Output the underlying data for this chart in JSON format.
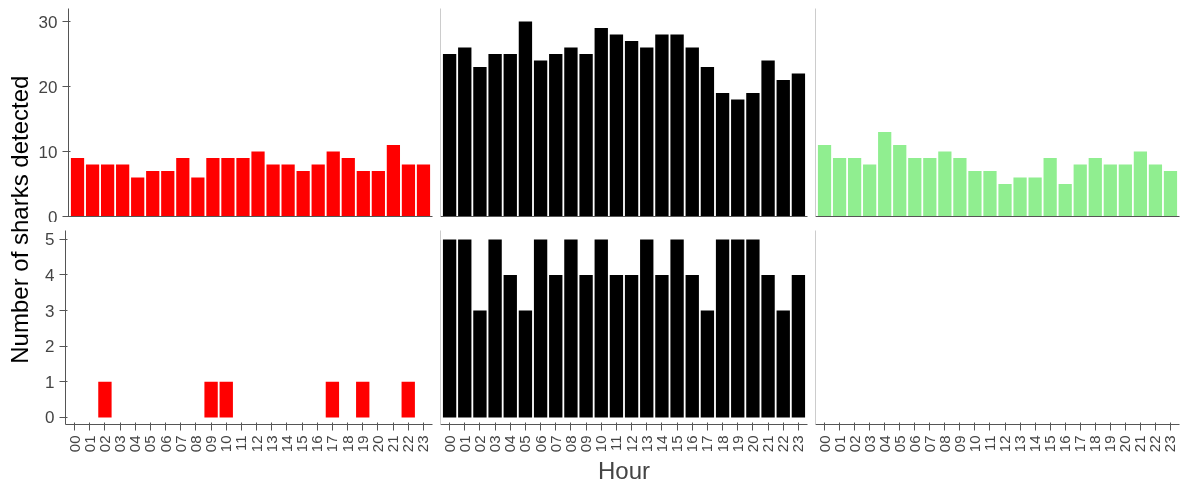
{
  "chart_data": [
    {
      "type": "bar",
      "ylabel": "Number of sharks detected",
      "categories": [
        "00",
        "01",
        "02",
        "03",
        "04",
        "05",
        "06",
        "07",
        "08",
        "09",
        "10",
        "11",
        "12",
        "13",
        "14",
        "15",
        "16",
        "17",
        "18",
        "19",
        "20",
        "21",
        "22",
        "23"
      ],
      "values": [
        9,
        8,
        8,
        8,
        6,
        7,
        7,
        9,
        6,
        9,
        9,
        9,
        10,
        8,
        8,
        7,
        8,
        10,
        9,
        7,
        7,
        11,
        8,
        8
      ],
      "color": "#ff0000",
      "ylim": [
        0,
        32
      ],
      "yticks": [
        0,
        10,
        20,
        30
      ],
      "tick_labels": "y",
      "grid": false
    },
    {
      "type": "bar",
      "categories": [
        "00",
        "01",
        "02",
        "03",
        "04",
        "05",
        "06",
        "07",
        "08",
        "09",
        "10",
        "11",
        "12",
        "13",
        "14",
        "15",
        "16",
        "17",
        "18",
        "19",
        "20",
        "21",
        "22",
        "23"
      ],
      "values": [
        25,
        26,
        23,
        25,
        25,
        30,
        24,
        25,
        26,
        25,
        29,
        28,
        27,
        26,
        28,
        28,
        26,
        23,
        19,
        18,
        19,
        24,
        21,
        22
      ],
      "color": "#000000",
      "ylim": [
        0,
        32
      ],
      "yticks": [
        0,
        10,
        20,
        30
      ],
      "tick_labels": false,
      "grid": false
    },
    {
      "type": "bar",
      "categories": [
        "00",
        "01",
        "02",
        "03",
        "04",
        "05",
        "06",
        "07",
        "08",
        "09",
        "10",
        "11",
        "12",
        "13",
        "14",
        "15",
        "16",
        "17",
        "18",
        "19",
        "20",
        "21",
        "22",
        "23"
      ],
      "values": [
        11,
        9,
        9,
        8,
        13,
        11,
        9,
        9,
        10,
        9,
        7,
        7,
        5,
        6,
        6,
        9,
        5,
        8,
        9,
        8,
        8,
        10,
        8,
        7
      ],
      "color": "#90ee90",
      "ylim": [
        0,
        32
      ],
      "yticks": [
        0,
        10,
        20,
        30
      ],
      "tick_labels": false,
      "grid": false
    },
    {
      "type": "bar",
      "categories": [
        "00",
        "01",
        "02",
        "03",
        "04",
        "05",
        "06",
        "07",
        "08",
        "09",
        "10",
        "11",
        "12",
        "13",
        "14",
        "15",
        "16",
        "17",
        "18",
        "19",
        "20",
        "21",
        "22",
        "23"
      ],
      "values": [
        0,
        0,
        1,
        0,
        0,
        0,
        0,
        0,
        0,
        1,
        1,
        0,
        0,
        0,
        0,
        0,
        0,
        1,
        0,
        1,
        0,
        0,
        1,
        0
      ],
      "color": "#ff0000",
      "ylim": [
        -0.2,
        5.25
      ],
      "yticks": [
        0,
        1,
        2,
        3,
        4,
        5
      ],
      "grid": false
    },
    {
      "type": "bar",
      "xlabel": "Hour",
      "categories": [
        "00",
        "01",
        "02",
        "03",
        "04",
        "05",
        "06",
        "07",
        "08",
        "09",
        "10",
        "11",
        "12",
        "13",
        "14",
        "15",
        "16",
        "17",
        "18",
        "19",
        "20",
        "21",
        "22",
        "23"
      ],
      "values": [
        5,
        5,
        3,
        5,
        4,
        3,
        5,
        4,
        5,
        4,
        5,
        4,
        4,
        5,
        4,
        5,
        4,
        3,
        5,
        5,
        5,
        4,
        3,
        4
      ],
      "color": "#000000",
      "ylim": [
        -0.2,
        5.25
      ],
      "yticks": [
        0,
        1,
        2,
        3,
        4,
        5
      ],
      "tick_labels": "x",
      "grid": false
    },
    {
      "type": "bar",
      "categories": [
        "00",
        "01",
        "02",
        "03",
        "04",
        "05",
        "06",
        "07",
        "08",
        "09",
        "10",
        "11",
        "12",
        "13",
        "14",
        "15",
        "16",
        "17",
        "18",
        "19",
        "20",
        "21",
        "22",
        "23"
      ],
      "values": [
        0,
        0,
        0,
        0,
        0,
        0,
        0,
        0,
        0,
        0,
        0,
        0,
        0,
        0,
        0,
        0,
        0,
        0,
        0,
        0,
        0,
        0,
        0,
        0
      ],
      "color": "#90ee90",
      "ylim": [
        -0.2,
        5.25
      ],
      "yticks": [
        0,
        1,
        2,
        3,
        4,
        5
      ],
      "tick_labels": "x",
      "grid": false
    }
  ]
}
